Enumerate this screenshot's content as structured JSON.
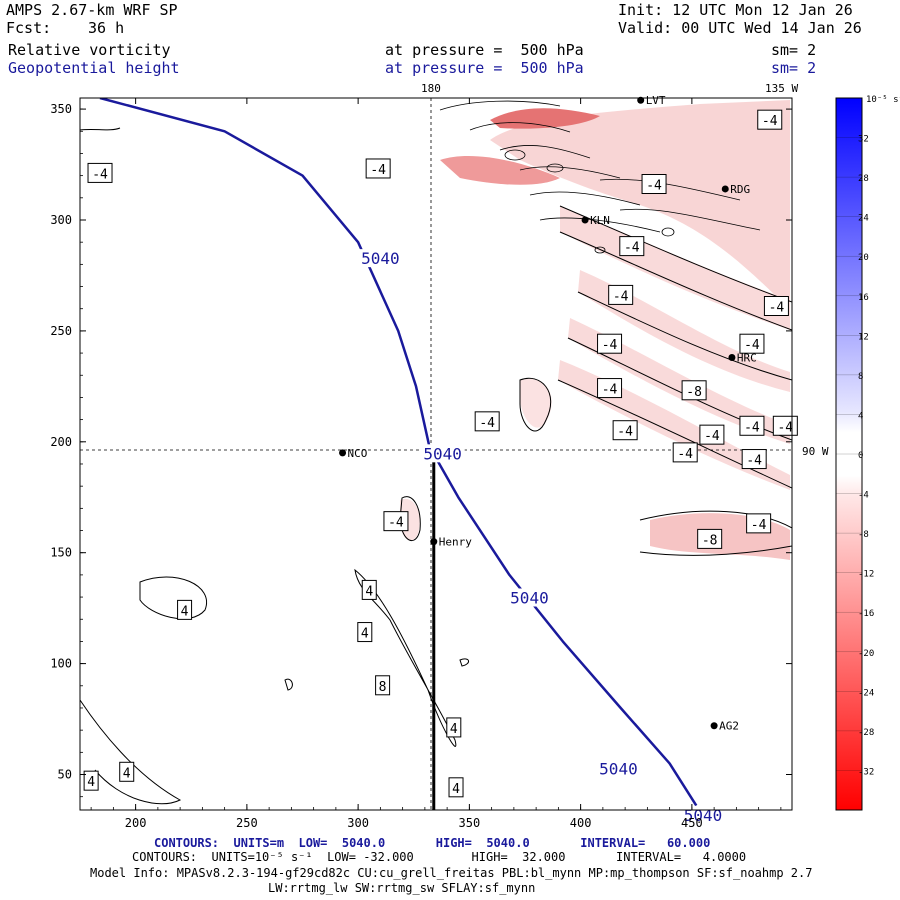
{
  "header": {
    "model": "AMPS 2.67-km WRF SP",
    "init": "Init: 12 UTC Mon 12 Jan 26",
    "fcst_label": "Fcst:",
    "fcst_value": "36 h",
    "valid": "Valid: 00 UTC Wed 14 Jan 26",
    "field1": "Relative vorticity",
    "field1_level": "at pressure =  500 hPa",
    "field1_sm": "sm= 2",
    "field2": "Geopotential height",
    "field2_level": "at pressure =  500 hPa",
    "field2_sm": "sm= 2"
  },
  "colorbar": {
    "units": "10⁻⁵ s⁻¹",
    "ticks": [
      "32",
      "28",
      "24",
      "20",
      "16",
      "12",
      "8",
      "4",
      "0",
      "-4",
      "-8",
      "-12",
      "-16",
      "-20",
      "-24",
      "-28",
      "-32"
    ],
    "positive_color": "#0000ff",
    "negative_color": "#ff0000"
  },
  "footer": {
    "line1": "CONTOURS:  UNITS=m  LOW=  5040.0       HIGH=  5040.0       INTERVAL=   60.000",
    "line2": "CONTOURS:  UNITS=10⁻⁵ s⁻¹  LOW= -32.000        HIGH=  32.000       INTERVAL=   4.0000",
    "line3": "Model Info: MPASv8.2.3-194-gf29cd82c CU:cu_grell_freitas PBL:bl_mynn MP:mp_thompson SF:sf_noahmp 2.7",
    "line4": "LW:rrtmg_lw SW:rrtmg_sw SFLAY:sf_mynn"
  },
  "chart_data": {
    "type": "contour-map",
    "xlim": [
      175,
      495
    ],
    "ylim": [
      34,
      355
    ],
    "xticks": [
      200,
      250,
      300,
      350,
      400,
      450
    ],
    "yticks": [
      50,
      100,
      150,
      200,
      250,
      300,
      350
    ],
    "meridian_labels": {
      "top_180": "180",
      "top_135W": "135 W",
      "right_90W": "90 W"
    },
    "meridian_line_x": 331,
    "parallel_line_y": 196,
    "cross_section_line": {
      "x": 334,
      "y_from": 34,
      "y_to": 196
    },
    "height_contour": {
      "value": "5040",
      "color": "#1a1a9c",
      "points": [
        [
          184,
          355
        ],
        [
          240,
          340
        ],
        [
          275,
          320
        ],
        [
          300,
          290
        ],
        [
          318,
          250
        ],
        [
          326,
          225
        ],
        [
          332,
          198
        ],
        [
          345,
          175
        ],
        [
          368,
          140
        ],
        [
          392,
          110
        ],
        [
          418,
          80
        ],
        [
          440,
          55
        ],
        [
          452,
          36
        ]
      ],
      "labels": [
        {
          "text": "5040",
          "x": 310,
          "y": 281
        },
        {
          "text": "5040",
          "x": 338,
          "y": 193
        },
        {
          "text": "5040",
          "x": 377,
          "y": 128
        },
        {
          "text": "5040",
          "x": 417,
          "y": 51
        },
        {
          "text": "5040",
          "x": 455,
          "y": 30
        }
      ]
    },
    "stations": [
      {
        "name": "NCO",
        "x": 293,
        "y": 195
      },
      {
        "name": "Henry",
        "x": 334,
        "y": 155
      },
      {
        "name": "KLN",
        "x": 402,
        "y": 300
      },
      {
        "name": "RDG",
        "x": 465,
        "y": 314
      },
      {
        "name": "HRC",
        "x": 468,
        "y": 238
      },
      {
        "name": "AG2",
        "x": 460,
        "y": 72
      },
      {
        "name": "LVT",
        "x": 427,
        "y": 354
      }
    ],
    "vorticity_labels": [
      {
        "text": "-4",
        "x": 184,
        "y": 321
      },
      {
        "text": "-4",
        "x": 309,
        "y": 323
      },
      {
        "text": "-4",
        "x": 433,
        "y": 316
      },
      {
        "text": "-4",
        "x": 485,
        "y": 345
      },
      {
        "text": "-4",
        "x": 423,
        "y": 288
      },
      {
        "text": "-4",
        "x": 418,
        "y": 266
      },
      {
        "text": "-4",
        "x": 488,
        "y": 261
      },
      {
        "text": "-4",
        "x": 413,
        "y": 244
      },
      {
        "text": "-4",
        "x": 413,
        "y": 224
      },
      {
        "text": "-4",
        "x": 477,
        "y": 244
      },
      {
        "text": "-8",
        "x": 451,
        "y": 223
      },
      {
        "text": "-4",
        "x": 358,
        "y": 209
      },
      {
        "text": "-4",
        "x": 420,
        "y": 205
      },
      {
        "text": "-4",
        "x": 459,
        "y": 203
      },
      {
        "text": "-4",
        "x": 477,
        "y": 207
      },
      {
        "text": "-4",
        "x": 492,
        "y": 207
      },
      {
        "text": "-4",
        "x": 478,
        "y": 192
      },
      {
        "text": "-4",
        "x": 447,
        "y": 195
      },
      {
        "text": "-4",
        "x": 317,
        "y": 164
      },
      {
        "text": "-4",
        "x": 480,
        "y": 163
      },
      {
        "text": "-8",
        "x": 458,
        "y": 156
      },
      {
        "text": "4",
        "x": 222,
        "y": 124
      },
      {
        "text": "4",
        "x": 305,
        "y": 133
      },
      {
        "text": "4",
        "x": 303,
        "y": 114
      },
      {
        "text": "8",
        "x": 311,
        "y": 90
      },
      {
        "text": "4",
        "x": 343,
        "y": 71
      },
      {
        "text": "4",
        "x": 180,
        "y": 47
      },
      {
        "text": "4",
        "x": 196,
        "y": 51
      },
      {
        "text": "4",
        "x": 344,
        "y": 44
      }
    ]
  }
}
